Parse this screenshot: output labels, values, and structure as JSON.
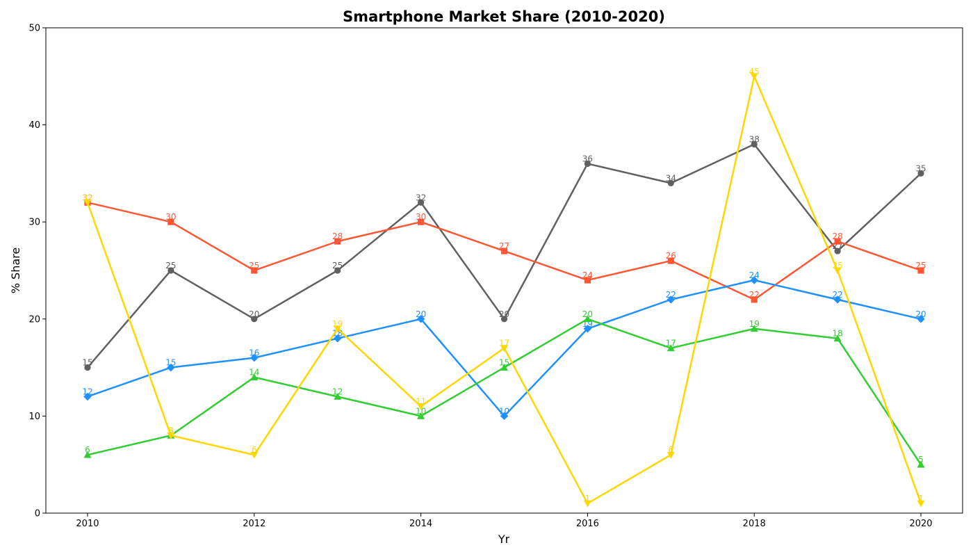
{
  "chart_data": {
    "type": "line",
    "title": "Smartphone Market Share (2010-2020)",
    "xlabel": "Yr",
    "ylabel": "% Share",
    "x": [
      2010,
      2011,
      2012,
      2013,
      2014,
      2015,
      2016,
      2017,
      2018,
      2019,
      2020
    ],
    "xlim": [
      2009.5,
      2020.5
    ],
    "ylim": [
      0,
      50
    ],
    "x_ticks": [
      2010,
      2012,
      2014,
      2016,
      2018,
      2020
    ],
    "y_ticks": [
      0,
      10,
      20,
      30,
      40,
      50
    ],
    "grid": false,
    "legend": "none",
    "series": [
      {
        "color": "#606060",
        "marker": "circle",
        "values": [
          15,
          25,
          20,
          25,
          32,
          20,
          36,
          34,
          38,
          27,
          35
        ]
      },
      {
        "color": "#FF5733",
        "marker": "square",
        "values": [
          32,
          30,
          25,
          28,
          30,
          27,
          24,
          26,
          22,
          28,
          25
        ]
      },
      {
        "color": "#1E90FF",
        "marker": "diamond",
        "values": [
          12,
          15,
          16,
          18,
          20,
          10,
          19,
          22,
          24,
          22,
          20
        ]
      },
      {
        "color": "#32CD32",
        "marker": "triangle-up",
        "values": [
          6,
          8,
          14,
          12,
          10,
          15,
          20,
          17,
          19,
          18,
          5
        ]
      },
      {
        "color": "#FFD700",
        "marker": "triangle-down",
        "values": [
          32,
          8,
          6,
          19,
          11,
          17,
          1,
          6,
          45,
          25,
          1
        ]
      }
    ]
  }
}
